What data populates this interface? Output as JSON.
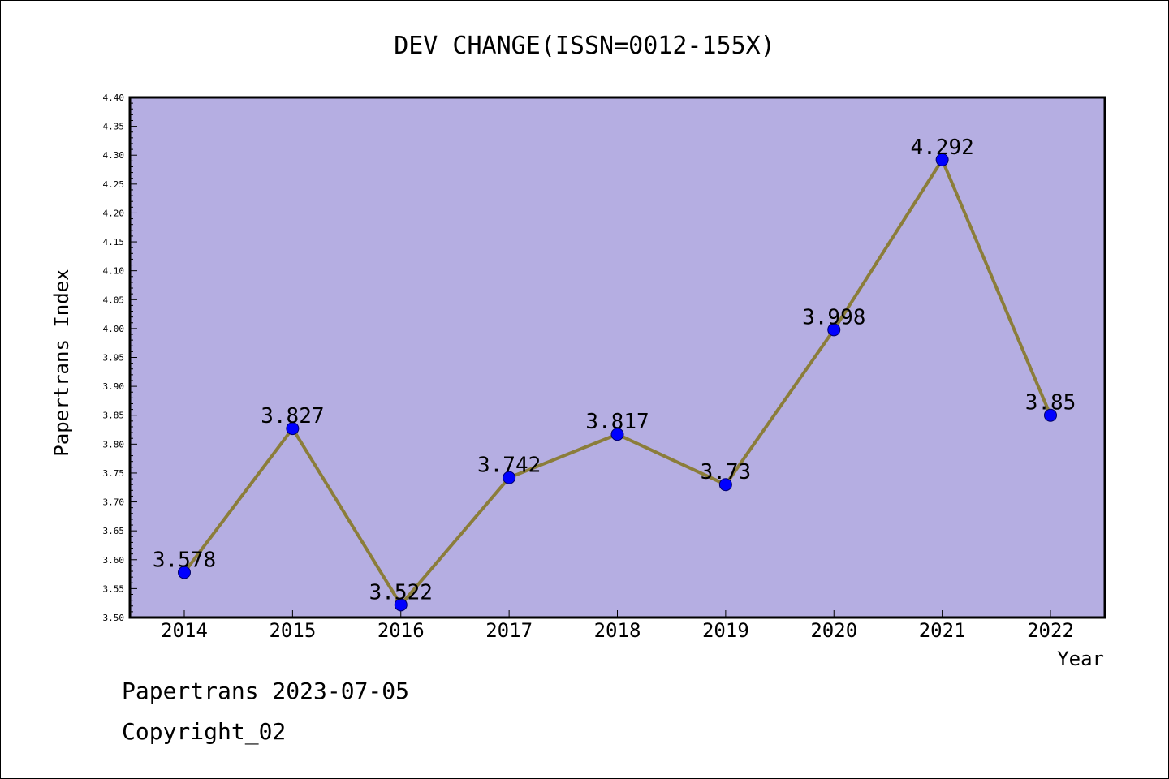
{
  "chart_data": {
    "type": "line",
    "title": "DEV CHANGE(ISSN=0012-155X)",
    "xlabel": "Year",
    "ylabel": "Papertrans Index",
    "categories": [
      "2014",
      "2015",
      "2016",
      "2017",
      "2018",
      "2019",
      "2020",
      "2021",
      "2022"
    ],
    "series": [
      {
        "values": [
          3.578,
          3.827,
          3.522,
          3.742,
          3.817,
          3.73,
          3.998,
          4.292,
          3.85
        ],
        "labels": [
          "3.578",
          "3.827",
          "3.522",
          "3.742",
          "3.817",
          "3.73",
          "3.998",
          "4.292",
          "3.85"
        ]
      }
    ],
    "ylim": [
      3.5,
      4.4
    ],
    "yticks": [
      "3.50",
      "3.55",
      "3.60",
      "3.65",
      "3.70",
      "3.75",
      "3.80",
      "3.85",
      "3.90",
      "3.95",
      "4.00",
      "4.05",
      "4.10",
      "4.15",
      "4.20",
      "4.25",
      "4.30",
      "4.35",
      "4.40"
    ],
    "grid": false,
    "colors": {
      "plot_background": "#b5aee2",
      "line": "#8b7d3a",
      "marker": "#0000ff"
    }
  },
  "footer": {
    "line1": "Papertrans 2023-07-05",
    "line2": "Copyright_02"
  }
}
